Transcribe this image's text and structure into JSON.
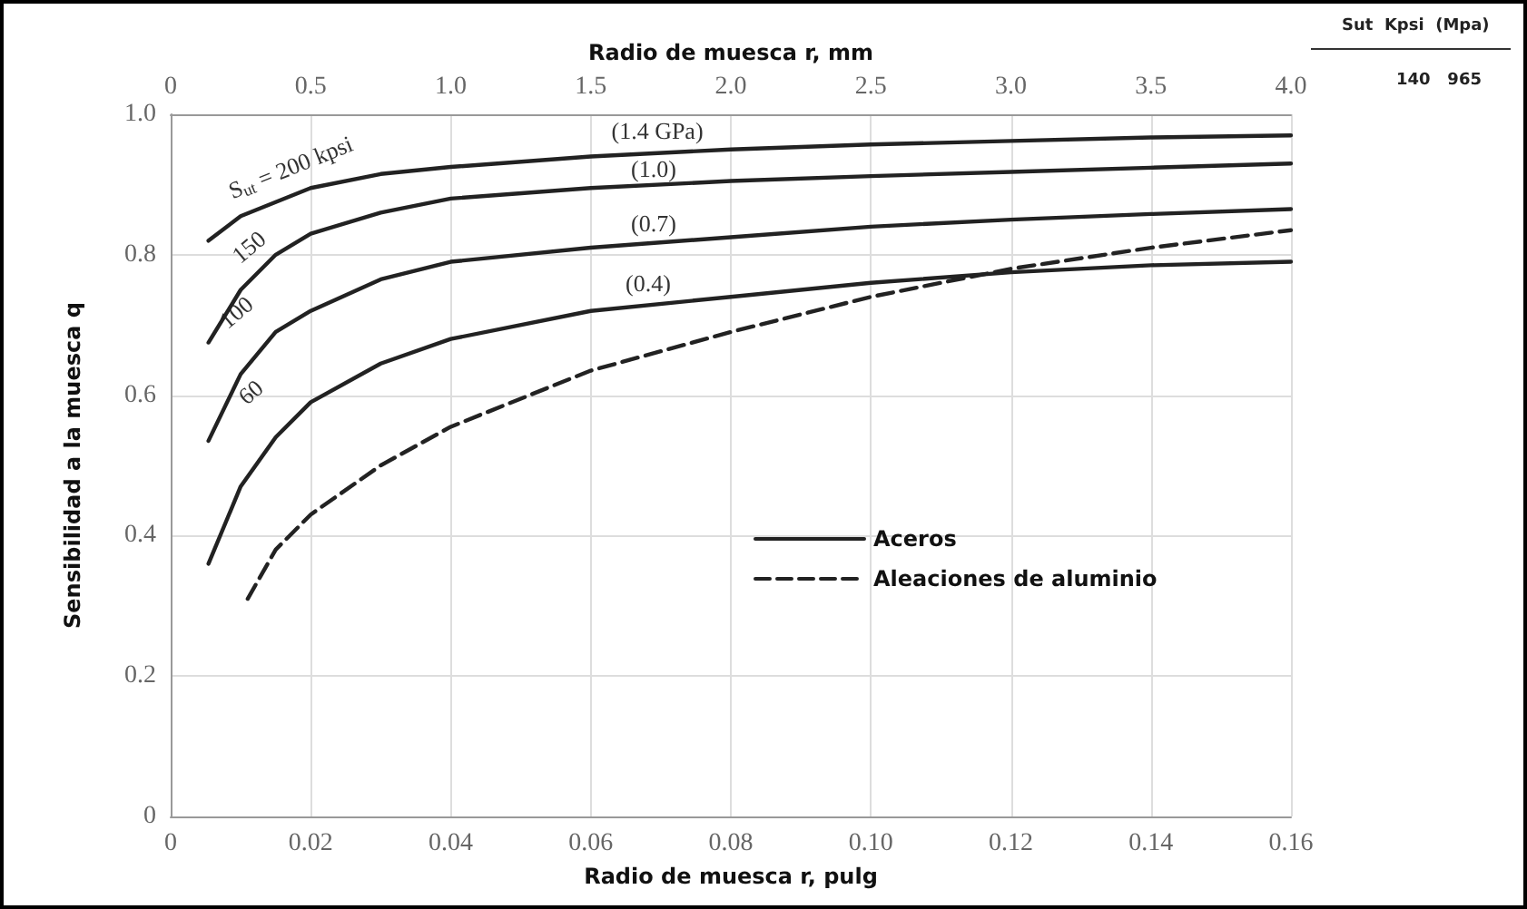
{
  "chart_data": {
    "type": "line",
    "xlabel": "Radio de muesca r, pulg",
    "ylabel": "Sensibilidad a la muesca q",
    "x2label": "Radio de muesca r, mm",
    "xlim": [
      0,
      0.16
    ],
    "xticks": [
      0,
      0.02,
      0.04,
      0.06,
      0.08,
      {
        "value": 0.1,
        "label": "0.10"
      },
      0.12,
      0.14,
      0.16
    ],
    "x2lim": [
      0,
      4
    ],
    "x2ticks": [
      0,
      0.5,
      {
        "value": 1,
        "label": "1.0"
      },
      1.5,
      {
        "value": 2,
        "label": "2.0"
      },
      2.5,
      {
        "value": 3,
        "label": "3.0"
      },
      3.5,
      {
        "value": 4,
        "label": "4.0"
      }
    ],
    "ylim": [
      0,
      1
    ],
    "yticks": [
      0,
      0.2,
      0.4,
      0.6,
      0.8,
      {
        "value": 1,
        "label": "1.0"
      }
    ],
    "grid": true,
    "legend": "bottom right",
    "marker": "none",
    "series": [
      {
        "name": "Aceros",
        "color": "#222222",
        "line_style": "solid",
        "x": [
          0.0054,
          0.01,
          0.015,
          0.02,
          0.03,
          0.04,
          0.06,
          0.08,
          0.1,
          0.12,
          0.14,
          0.16
        ],
        "values": [
          0.82,
          0.855,
          0.875,
          0.895,
          0.915,
          0.925,
          0.94,
          0.95,
          0.957,
          0.962,
          0.967,
          0.97
        ]
      },
      {
        "color": "#222222",
        "line_style": "solid",
        "x": [
          0.0054,
          0.01,
          0.015,
          0.02,
          0.03,
          0.04,
          0.06,
          0.08,
          0.1,
          0.12,
          0.14,
          0.16
        ],
        "values": [
          0.675,
          0.75,
          0.8,
          0.83,
          0.86,
          0.88,
          0.895,
          0.905,
          0.912,
          0.918,
          0.924,
          0.93
        ]
      },
      {
        "color": "#222222",
        "line_style": "solid",
        "x": [
          0.0054,
          0.01,
          0.015,
          0.02,
          0.03,
          0.04,
          0.06,
          0.08,
          0.1,
          0.12,
          0.14,
          0.16
        ],
        "values": [
          0.535,
          0.63,
          0.69,
          0.72,
          0.765,
          0.79,
          0.81,
          0.825,
          0.84,
          0.85,
          0.858,
          0.865
        ]
      },
      {
        "color": "#222222",
        "line_style": "solid",
        "x": [
          0.0054,
          0.01,
          0.015,
          0.02,
          0.03,
          0.04,
          0.06,
          0.08,
          0.1,
          0.12,
          0.14,
          0.16
        ],
        "values": [
          0.36,
          0.47,
          0.54,
          0.59,
          0.645,
          0.68,
          0.72,
          0.74,
          0.76,
          0.775,
          0.785,
          0.79
        ]
      },
      {
        "name": "Aleaciones de aluminio",
        "color": "#222222",
        "line_style": "dashed",
        "x": [
          0.011,
          0.015,
          0.02,
          0.03,
          0.04,
          0.06,
          0.08,
          0.1,
          0.12,
          0.14,
          0.16
        ],
        "values": [
          0.31,
          0.38,
          0.43,
          0.5,
          0.555,
          0.635,
          0.69,
          0.74,
          0.78,
          0.81,
          0.835
        ]
      }
    ],
    "annotations": [
      "S$_{ut}$ = 200 kpsi",
      "150",
      "100",
      "60",
      "(1.4 GPa)",
      "(1.0)",
      "(0.7)",
      "(0.4)",
      "Sut  Kpsi  (Mpa)",
      "140   965"
    ]
  }
}
